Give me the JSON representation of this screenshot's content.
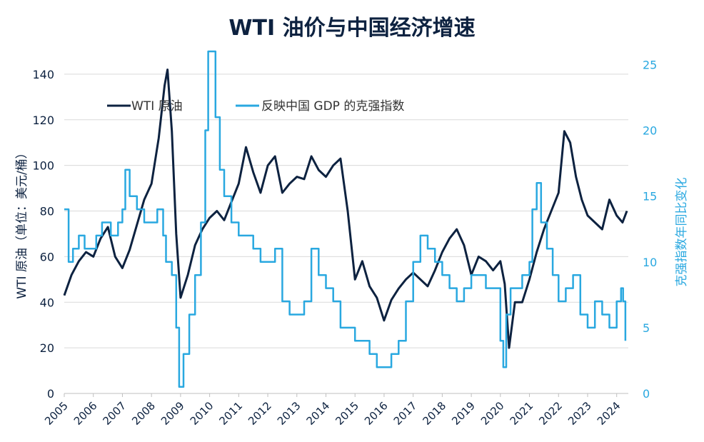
{
  "chart_data": {
    "type": "line",
    "title": "WTI 油价与中国经济增速",
    "ylabel": "WTI 原油（单位：美元/桶）",
    "y2label": "克强指数年同比变化",
    "ylim": [
      0,
      150
    ],
    "y2lim": [
      0,
      26
    ],
    "yticks": [
      0,
      20,
      40,
      60,
      80,
      100,
      120,
      140
    ],
    "y2ticks": [
      0,
      5,
      10,
      15,
      20,
      25
    ],
    "xticks": [
      "2005",
      "2006",
      "2007",
      "2008",
      "2009",
      "2010",
      "2011",
      "2012",
      "2013",
      "2014",
      "2015",
      "2016",
      "2017",
      "2018",
      "2019",
      "2020",
      "2021",
      "2022",
      "2023",
      "2024"
    ],
    "xlim": [
      2005.0,
      2024.4
    ],
    "grid": true,
    "legend_position": "top-left",
    "colors": {
      "wti": "#0d2240",
      "keqiang": "#29a8e0",
      "grid": "#d9d9d9",
      "axis_text": "#0d2240",
      "y2_text": "#29a8e0"
    },
    "series": [
      {
        "name": "WTI 原油",
        "axis": "left",
        "x": [
          2005.0,
          2005.25,
          2005.5,
          2005.75,
          2006.0,
          2006.25,
          2006.5,
          2006.75,
          2007.0,
          2007.25,
          2007.5,
          2007.75,
          2008.0,
          2008.25,
          2008.45,
          2008.55,
          2008.7,
          2008.85,
          2009.0,
          2009.25,
          2009.5,
          2009.75,
          2010.0,
          2010.25,
          2010.5,
          2010.75,
          2011.0,
          2011.25,
          2011.5,
          2011.75,
          2012.0,
          2012.25,
          2012.5,
          2012.75,
          2013.0,
          2013.25,
          2013.5,
          2013.75,
          2014.0,
          2014.25,
          2014.5,
          2014.75,
          2015.0,
          2015.25,
          2015.5,
          2015.75,
          2016.0,
          2016.25,
          2016.5,
          2016.75,
          2017.0,
          2017.25,
          2017.5,
          2017.75,
          2018.0,
          2018.25,
          2018.5,
          2018.75,
          2019.0,
          2019.25,
          2019.5,
          2019.75,
          2020.0,
          2020.15,
          2020.3,
          2020.5,
          2020.75,
          2021.0,
          2021.25,
          2021.5,
          2021.75,
          2022.0,
          2022.2,
          2022.4,
          2022.6,
          2022.8,
          2023.0,
          2023.25,
          2023.5,
          2023.75,
          2024.0,
          2024.2,
          2024.35
        ],
        "values": [
          43,
          52,
          58,
          62,
          60,
          68,
          73,
          60,
          55,
          63,
          74,
          85,
          92,
          112,
          135,
          142,
          115,
          70,
          42,
          52,
          65,
          72,
          77,
          80,
          76,
          84,
          92,
          108,
          97,
          88,
          100,
          104,
          88,
          92,
          95,
          94,
          104,
          98,
          95,
          100,
          103,
          80,
          50,
          58,
          47,
          42,
          32,
          41,
          46,
          50,
          53,
          50,
          47,
          54,
          62,
          68,
          72,
          65,
          52,
          60,
          58,
          54,
          58,
          48,
          20,
          40,
          40,
          50,
          62,
          72,
          80,
          88,
          115,
          110,
          95,
          85,
          78,
          75,
          72,
          85,
          78,
          75,
          80
        ]
      },
      {
        "name": "反映中国 GDP 的克强指数",
        "axis": "right",
        "x": [
          2005.0,
          2005.15,
          2005.3,
          2005.5,
          2005.7,
          2005.9,
          2006.1,
          2006.3,
          2006.6,
          2006.85,
          2007.0,
          2007.1,
          2007.25,
          2007.5,
          2007.75,
          2008.0,
          2008.2,
          2008.4,
          2008.5,
          2008.7,
          2008.85,
          2008.95,
          2009.1,
          2009.3,
          2009.5,
          2009.7,
          2009.85,
          2009.95,
          2010.05,
          2010.2,
          2010.35,
          2010.5,
          2010.75,
          2011.0,
          2011.25,
          2011.5,
          2011.75,
          2012.0,
          2012.25,
          2012.5,
          2012.75,
          2013.0,
          2013.25,
          2013.5,
          2013.75,
          2014.0,
          2014.25,
          2014.5,
          2014.75,
          2015.0,
          2015.25,
          2015.5,
          2015.75,
          2016.0,
          2016.25,
          2016.5,
          2016.75,
          2017.0,
          2017.25,
          2017.5,
          2017.75,
          2018.0,
          2018.25,
          2018.5,
          2018.75,
          2019.0,
          2019.25,
          2019.5,
          2019.75,
          2020.0,
          2020.1,
          2020.2,
          2020.35,
          2020.5,
          2020.75,
          2021.0,
          2021.1,
          2021.25,
          2021.4,
          2021.6,
          2021.8,
          2022.0,
          2022.25,
          2022.5,
          2022.75,
          2023.0,
          2023.25,
          2023.5,
          2023.75,
          2024.0,
          2024.15,
          2024.22,
          2024.3
        ],
        "values": [
          14,
          10,
          11,
          12,
          11,
          11,
          12,
          13,
          12,
          13,
          14,
          17,
          15,
          14,
          13,
          13,
          14,
          12,
          10,
          9,
          5,
          0.5,
          3,
          6,
          9,
          13,
          20,
          26,
          26,
          21,
          17,
          15,
          13,
          12,
          12,
          11,
          10,
          10,
          11,
          7,
          6,
          6,
          7,
          11,
          9,
          8,
          7,
          5,
          5,
          4,
          4,
          3,
          2,
          2,
          3,
          4,
          7,
          10,
          12,
          11,
          10,
          9,
          8,
          7,
          8,
          9,
          9,
          8,
          8,
          4,
          2,
          6,
          8,
          8,
          9,
          10,
          14,
          16,
          13,
          11,
          9,
          7,
          8,
          9,
          6,
          5,
          7,
          6,
          5,
          7,
          8,
          7,
          4
        ]
      }
    ]
  }
}
